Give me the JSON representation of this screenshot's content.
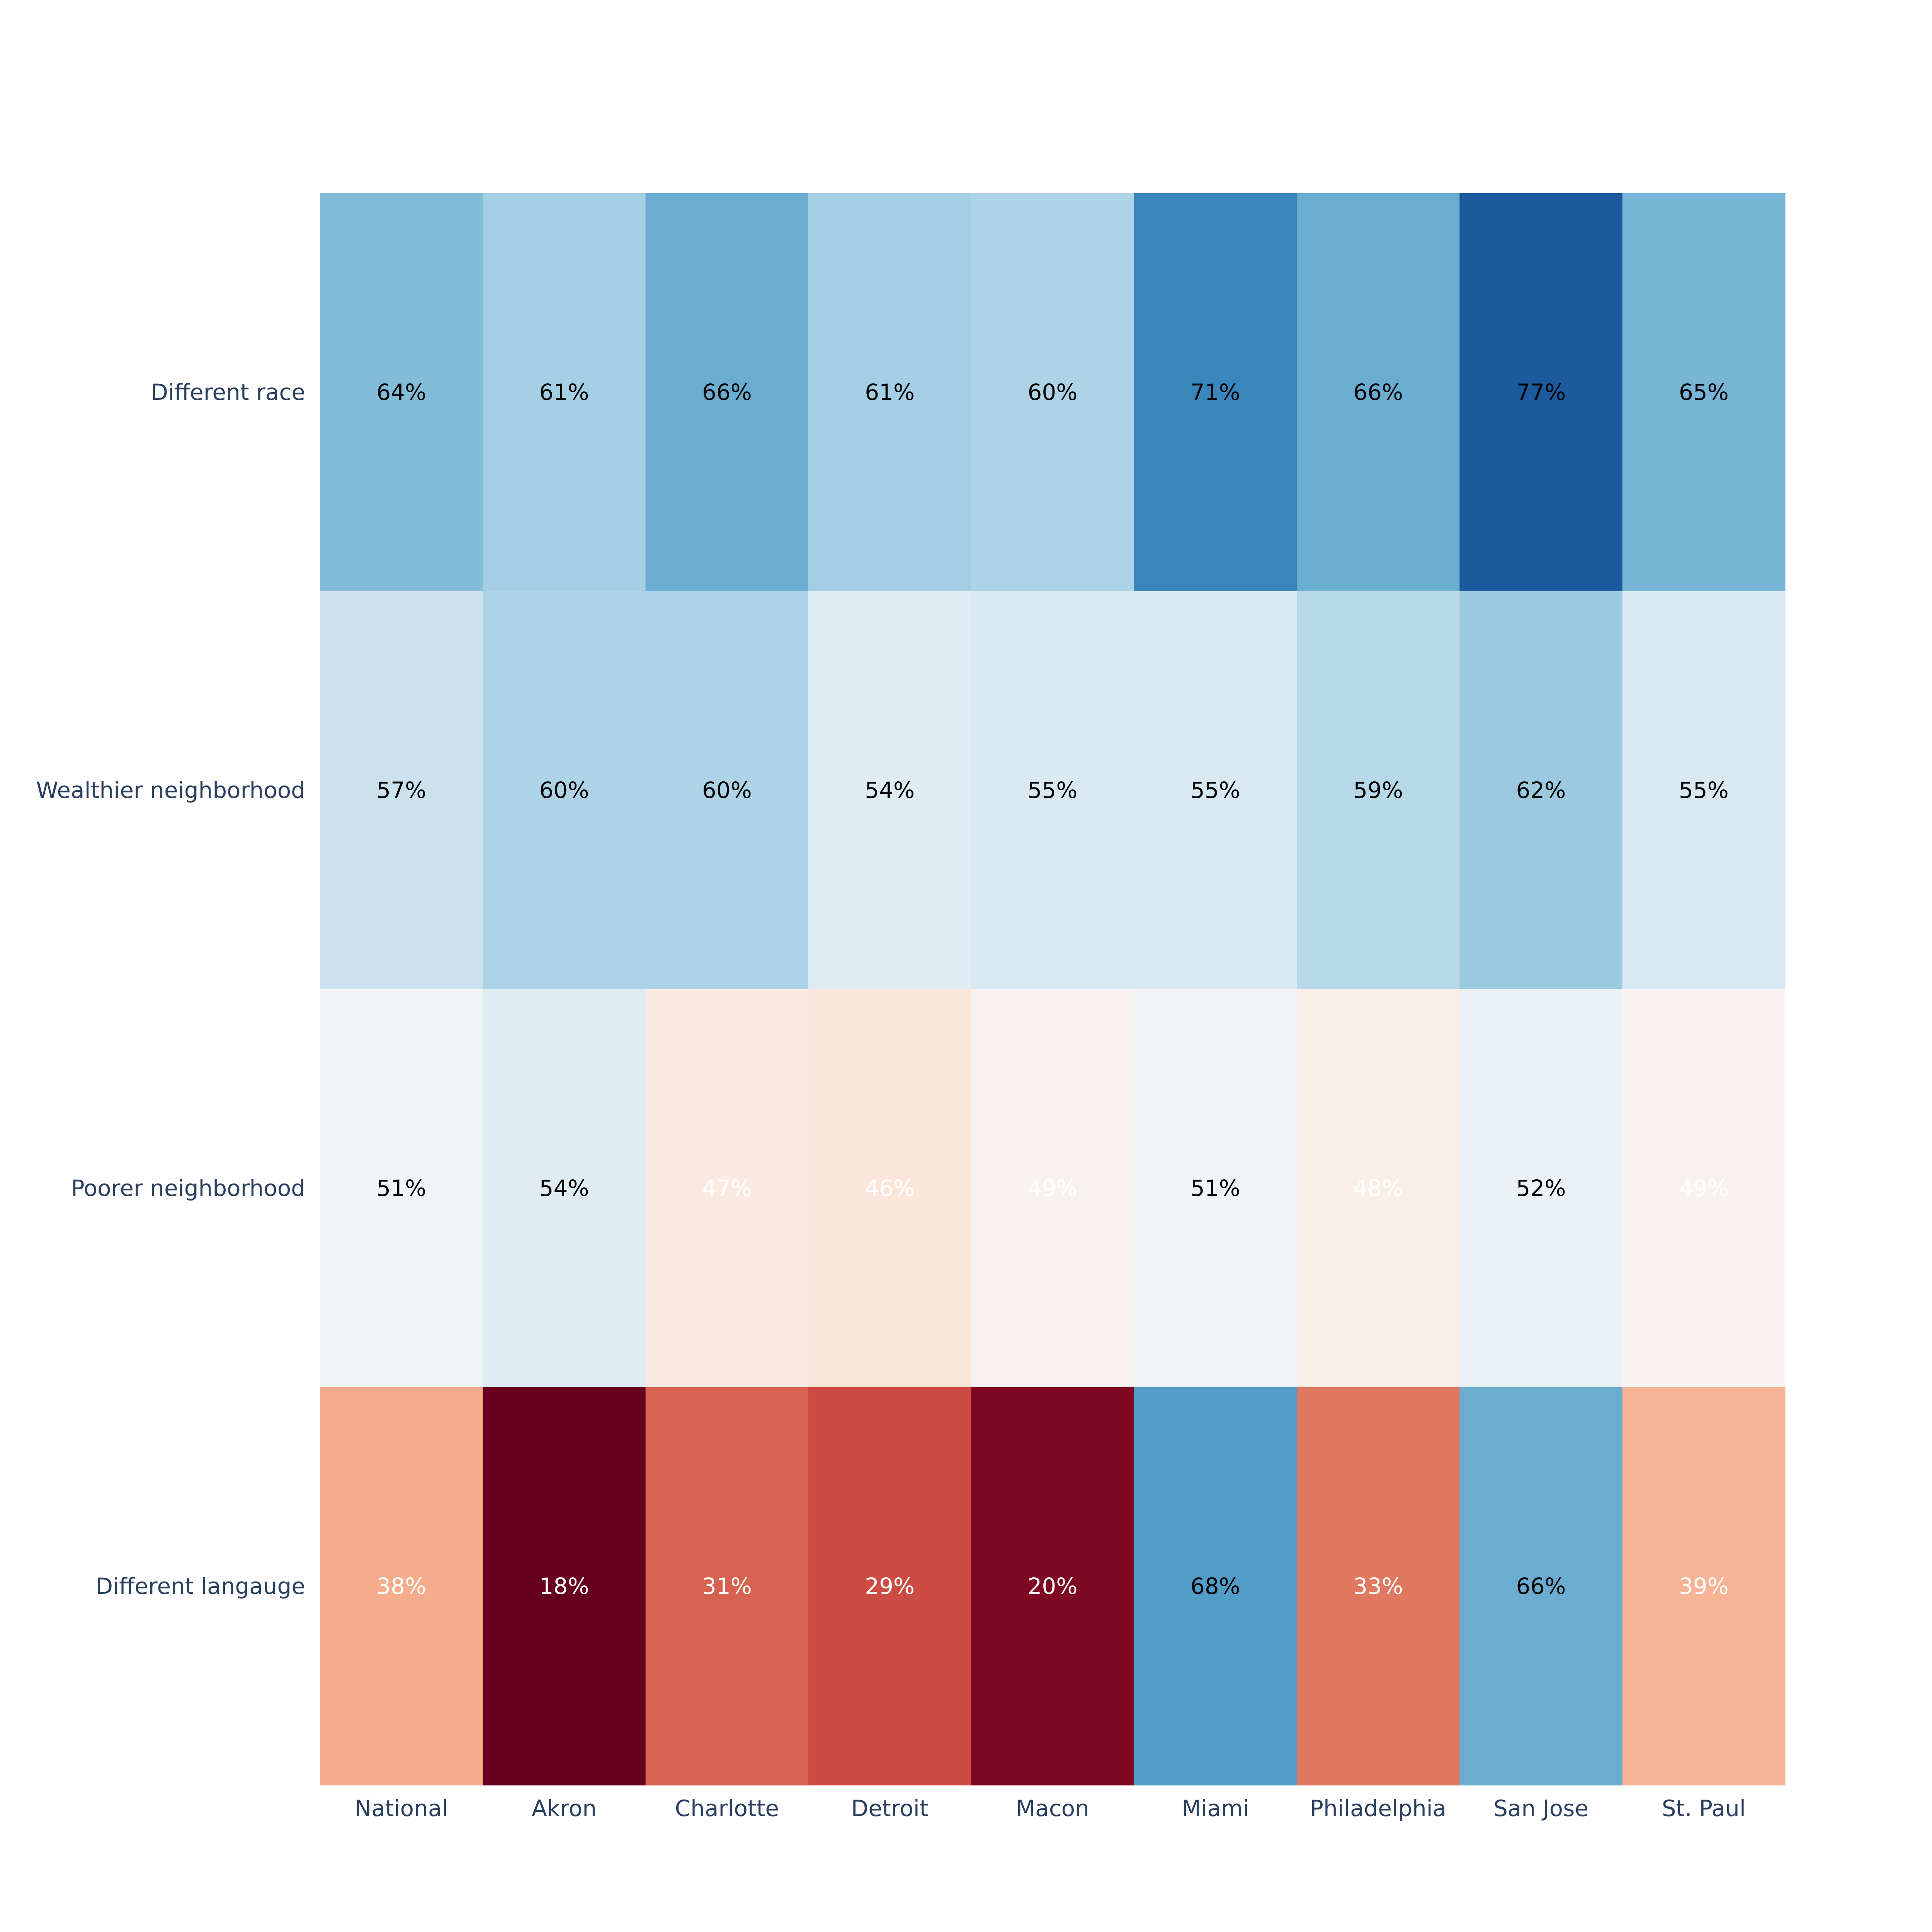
{
  "chart_data": {
    "type": "heatmap",
    "title": "",
    "xlabel": "",
    "ylabel": "",
    "x": [
      "National",
      "Akron",
      "Charlotte",
      "Detroit",
      "Macon",
      "Miami",
      "Philadelphia",
      "San Jose",
      "St. Paul"
    ],
    "y": [
      "Different race",
      "Wealthier neighborhood",
      "Poorer neighborhood",
      "Different langauge"
    ],
    "values": [
      [
        64,
        61,
        66,
        61,
        60,
        71,
        66,
        77,
        65
      ],
      [
        57,
        60,
        60,
        54,
        55,
        55,
        59,
        62,
        55
      ],
      [
        51,
        54,
        47,
        46,
        49,
        51,
        48,
        52,
        49
      ],
      [
        38,
        18,
        31,
        29,
        20,
        68,
        33,
        66,
        39
      ]
    ],
    "labels": [
      [
        "64%",
        "61%",
        "66%",
        "61%",
        "60%",
        "71%",
        "66%",
        "77%",
        "65%"
      ],
      [
        "57%",
        "60%",
        "60%",
        "54%",
        "55%",
        "55%",
        "59%",
        "62%",
        "55%"
      ],
      [
        "51%",
        "54%",
        "47%",
        "46%",
        "49%",
        "51%",
        "48%",
        "52%",
        "49%"
      ],
      [
        "38%",
        "18%",
        "31%",
        "29%",
        "20%",
        "68%",
        "33%",
        "66%",
        "39%"
      ]
    ],
    "colorscale": "RdBu",
    "zmid": 50,
    "legend": "none",
    "grid": false
  }
}
